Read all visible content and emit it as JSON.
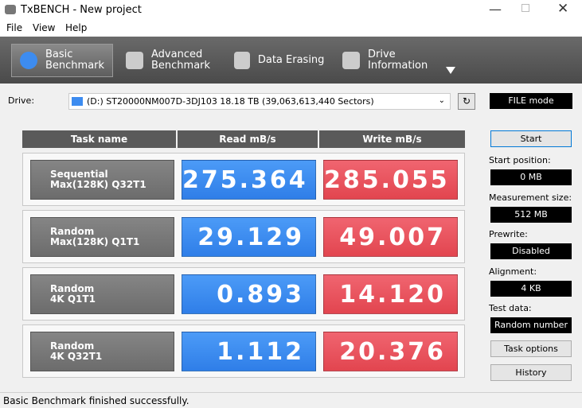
{
  "window": {
    "title": "TxBENCH - New project"
  },
  "menu": [
    "File",
    "View",
    "Help"
  ],
  "tabs": [
    "Basic Benchmark",
    "Advanced Benchmark",
    "Data Erasing",
    "Drive Information"
  ],
  "drive": {
    "label": "Drive:",
    "selection": "(D:) ST20000NM007D-3DJ103  18.18 TB (39,063,613,440 Sectors)",
    "mode": "FILE mode"
  },
  "table": {
    "headers": [
      "Task name",
      "Read mB/s",
      "Write mB/s"
    ],
    "rows": [
      {
        "task": [
          "Sequential",
          "Max(128K) Q32T1"
        ],
        "read": "275.364",
        "write": "285.055"
      },
      {
        "task": [
          "Random",
          "Max(128K) Q1T1"
        ],
        "read": "29.129",
        "write": "49.007"
      },
      {
        "task": [
          "Random",
          "4K Q1T1"
        ],
        "read": "0.893",
        "write": "14.120"
      },
      {
        "task": [
          "Random",
          "4K Q32T1"
        ],
        "read": "1.112",
        "write": "20.376"
      }
    ]
  },
  "panel": {
    "start": "Start",
    "fields": [
      {
        "label": "Start position:",
        "value": "0 MB"
      },
      {
        "label": "Measurement size:",
        "value": "512 MB"
      },
      {
        "label": "Prewrite:",
        "value": "Disabled"
      },
      {
        "label": "Alignment:",
        "value": "4 KB"
      },
      {
        "label": "Test data:",
        "value": "Random number"
      }
    ],
    "buttons": [
      "Task options",
      "History"
    ]
  },
  "status": "Basic Benchmark finished successfully."
}
